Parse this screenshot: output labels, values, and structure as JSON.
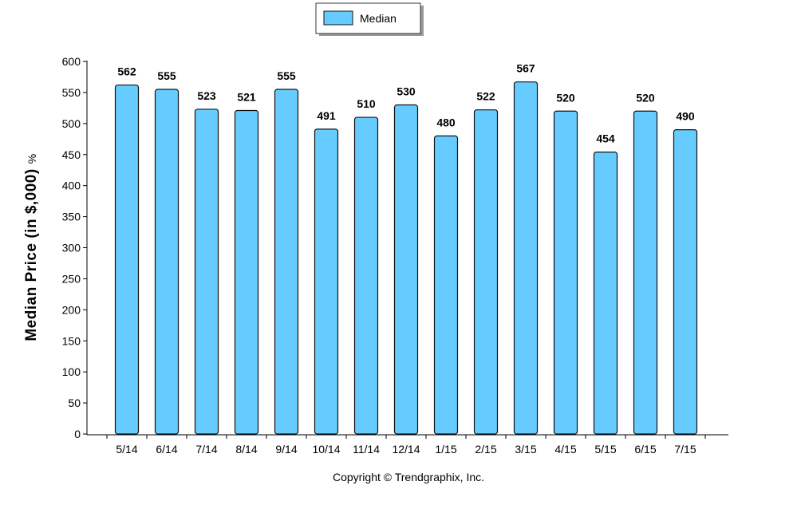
{
  "chart_data": {
    "type": "bar",
    "categories": [
      "5/14",
      "6/14",
      "7/14",
      "8/14",
      "9/14",
      "10/14",
      "11/14",
      "12/14",
      "1/15",
      "2/15",
      "3/15",
      "4/15",
      "5/15",
      "6/15",
      "7/15"
    ],
    "series": [
      {
        "name": "Median",
        "values": [
          562,
          555,
          523,
          521,
          555,
          491,
          510,
          530,
          480,
          522,
          567,
          520,
          454,
          520,
          490
        ],
        "color": "#66ccff"
      }
    ],
    "title": "",
    "xlabel": "",
    "ylabel": "Median Price (in $,000)",
    "ylabel_unit": "%",
    "ylim": [
      0,
      600
    ],
    "yticks": [
      0,
      50,
      100,
      150,
      200,
      250,
      300,
      350,
      400,
      450,
      500,
      550,
      600
    ],
    "grid": false,
    "legend_position": "top-center",
    "data_labels": true
  },
  "credit": "Copyright © Trendgraphix, Inc.",
  "colors": {
    "bar_fill": "#66ccff",
    "bar_stroke": "#111111",
    "axis": "#000000"
  }
}
